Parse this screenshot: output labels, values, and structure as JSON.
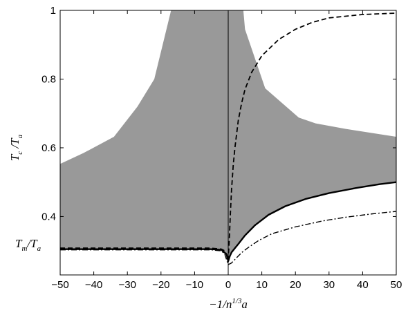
{
  "chart_data": {
    "type": "area",
    "xlabel": "−1/n^{1/3}a",
    "xlabel_parts": {
      "pre": "−1/",
      "n": "n",
      "sup": "1/3",
      "a": "a"
    },
    "ylabel": "T_c / T_a",
    "ylabel_parts": {
      "t1": "T",
      "s1": "c",
      "slash": " /",
      "t2": "T",
      "s2": "a"
    },
    "annotations": [
      {
        "text": "T_m/T_a",
        "parts": {
          "t1": "T",
          "s1": "m",
          "slash": "/",
          "t2": "T",
          "s2": "a"
        },
        "y": 0.305
      }
    ],
    "xlim": [
      -50,
      50
    ],
    "ylim": [
      0.23,
      1.0
    ],
    "x_ticks": [
      -50,
      -40,
      -30,
      -20,
      -10,
      0,
      10,
      20,
      30,
      40,
      50
    ],
    "x_tick_labels": [
      "−50",
      "−40",
      "−30",
      "−20",
      "−10",
      "0",
      "10",
      "20",
      "30",
      "40",
      "50"
    ],
    "y_ticks": [
      0.4,
      0.6,
      0.8,
      1.0
    ],
    "y_tick_labels": [
      "0.4",
      "0.6",
      "0.8",
      "1"
    ],
    "grid": false,
    "vertical_reference_line": 0,
    "series": [
      {
        "style": "band",
        "color": "#999999",
        "upper": [
          [
            -50,
            0.553
          ],
          [
            -43,
            0.585
          ],
          [
            -34,
            0.632
          ],
          [
            -27,
            0.72
          ],
          [
            -22,
            0.8
          ],
          [
            -17,
            1.0
          ],
          [
            4.5,
            1.0
          ],
          [
            5,
            0.945
          ],
          [
            11,
            0.773
          ],
          [
            21,
            0.688
          ],
          [
            26,
            0.671
          ],
          [
            35,
            0.655
          ],
          [
            50,
            0.632
          ]
        ],
        "lower": [
          [
            -50,
            0.305
          ],
          [
            -5,
            0.305
          ],
          [
            -2,
            0.303
          ],
          [
            -0.5,
            0.29
          ],
          [
            0,
            0.27
          ],
          [
            0.5,
            0.285
          ],
          [
            1,
            0.296
          ],
          [
            2,
            0.308
          ],
          [
            3,
            0.32
          ],
          [
            5,
            0.345
          ],
          [
            8,
            0.375
          ],
          [
            12,
            0.405
          ],
          [
            17,
            0.43
          ],
          [
            23,
            0.451
          ],
          [
            30,
            0.468
          ],
          [
            38,
            0.483
          ],
          [
            45,
            0.494
          ],
          [
            50,
            0.5
          ]
        ]
      },
      {
        "style": "solid",
        "color": "#000000",
        "points": [
          [
            -50,
            0.305
          ],
          [
            -5,
            0.305
          ],
          [
            -2,
            0.303
          ],
          [
            -0.5,
            0.29
          ],
          [
            0,
            0.27
          ],
          [
            0.5,
            0.285
          ],
          [
            1,
            0.296
          ],
          [
            2,
            0.308
          ],
          [
            3,
            0.32
          ],
          [
            5,
            0.345
          ],
          [
            8,
            0.375
          ],
          [
            12,
            0.405
          ],
          [
            17,
            0.43
          ],
          [
            23,
            0.451
          ],
          [
            30,
            0.468
          ],
          [
            38,
            0.483
          ],
          [
            45,
            0.494
          ],
          [
            50,
            0.5
          ]
        ]
      },
      {
        "style": "dashed",
        "color": "#000000",
        "points": [
          [
            -50,
            0.308
          ],
          [
            -5,
            0.308
          ],
          [
            -2,
            0.305
          ],
          [
            -1,
            0.3
          ],
          [
            -0.5,
            0.29
          ],
          [
            0,
            0.272
          ],
          [
            0.3,
            0.33
          ],
          [
            0.7,
            0.42
          ],
          [
            1,
            0.48
          ],
          [
            1.5,
            0.55
          ],
          [
            2,
            0.6
          ],
          [
            3,
            0.68
          ],
          [
            4,
            0.73
          ],
          [
            5,
            0.77
          ],
          [
            7,
            0.82
          ],
          [
            10,
            0.868
          ],
          [
            15,
            0.915
          ],
          [
            20,
            0.945
          ],
          [
            25,
            0.965
          ],
          [
            30,
            0.978
          ],
          [
            40,
            0.988
          ],
          [
            50,
            0.992
          ]
        ]
      },
      {
        "style": "dashdot",
        "color": "#000000",
        "points": [
          [
            -50,
            0.303
          ],
          [
            -5,
            0.303
          ],
          [
            -2,
            0.3
          ],
          [
            -1,
            0.29
          ],
          [
            0,
            0.26
          ],
          [
            1,
            0.265
          ],
          [
            2,
            0.275
          ],
          [
            4,
            0.295
          ],
          [
            6,
            0.31
          ],
          [
            9,
            0.33
          ],
          [
            13,
            0.35
          ],
          [
            20,
            0.37
          ],
          [
            28,
            0.387
          ],
          [
            35,
            0.398
          ],
          [
            43,
            0.408
          ],
          [
            50,
            0.415
          ]
        ]
      }
    ]
  }
}
